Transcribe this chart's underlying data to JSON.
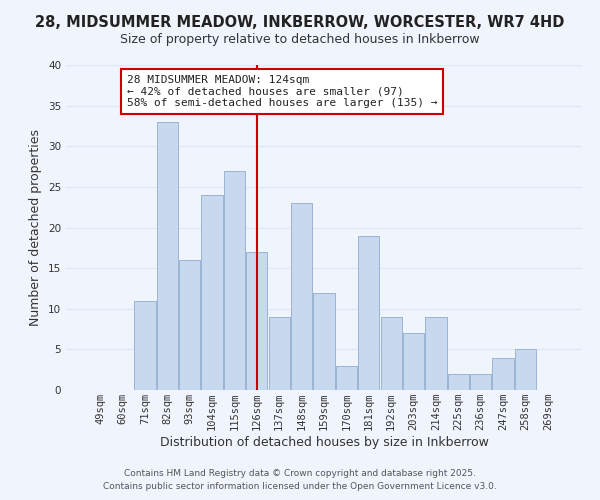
{
  "title": "28, MIDSUMMER MEADOW, INKBERROW, WORCESTER, WR7 4HD",
  "subtitle": "Size of property relative to detached houses in Inkberrow",
  "xlabel": "Distribution of detached houses by size in Inkberrow",
  "ylabel": "Number of detached properties",
  "bin_labels": [
    "49sqm",
    "60sqm",
    "71sqm",
    "82sqm",
    "93sqm",
    "104sqm",
    "115sqm",
    "126sqm",
    "137sqm",
    "148sqm",
    "159sqm",
    "170sqm",
    "181sqm",
    "192sqm",
    "203sqm",
    "214sqm",
    "225sqm",
    "236sqm",
    "247sqm",
    "258sqm",
    "269sqm"
  ],
  "bar_values": [
    0,
    0,
    11,
    33,
    16,
    24,
    27,
    17,
    9,
    23,
    12,
    3,
    19,
    9,
    7,
    9,
    2,
    2,
    4,
    5,
    0
  ],
  "bar_color": "#c8d8ee",
  "bar_edgecolor": "#9ab4d4",
  "grid_color": "#dde8f5",
  "background_color": "#f0f4fc",
  "vline_x": 7,
  "vline_color": "#cc0000",
  "annotation_text": "28 MIDSUMMER MEADOW: 124sqm\n← 42% of detached houses are smaller (97)\n58% of semi-detached houses are larger (135) →",
  "annotation_box_edgecolor": "#cc0000",
  "annotation_box_facecolor": "#ffffff",
  "footer1": "Contains HM Land Registry data © Crown copyright and database right 2025.",
  "footer2": "Contains public sector information licensed under the Open Government Licence v3.0.",
  "ylim": [
    0,
    40
  ],
  "title_fontsize": 10.5,
  "subtitle_fontsize": 9,
  "axis_label_fontsize": 9,
  "tick_fontsize": 7.5,
  "annotation_fontsize": 8,
  "footer_fontsize": 6.5
}
